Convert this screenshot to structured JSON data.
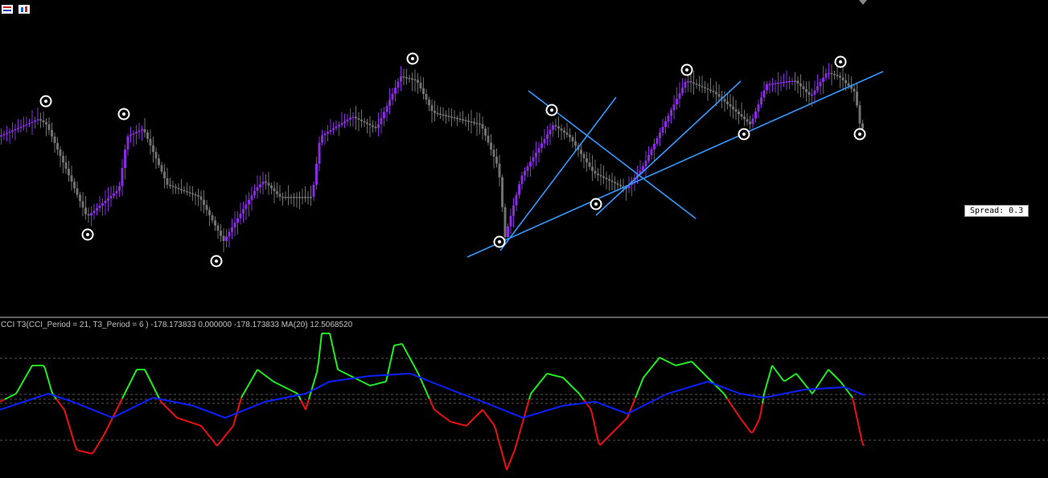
{
  "indicator_label": "CCI T3(CCI_Period = 21, T3_Period = 6 ) -178.173833 0.000000 -178.173833 MA(20) 12.5068520",
  "spread_label": "Spread: 0.3"
}
